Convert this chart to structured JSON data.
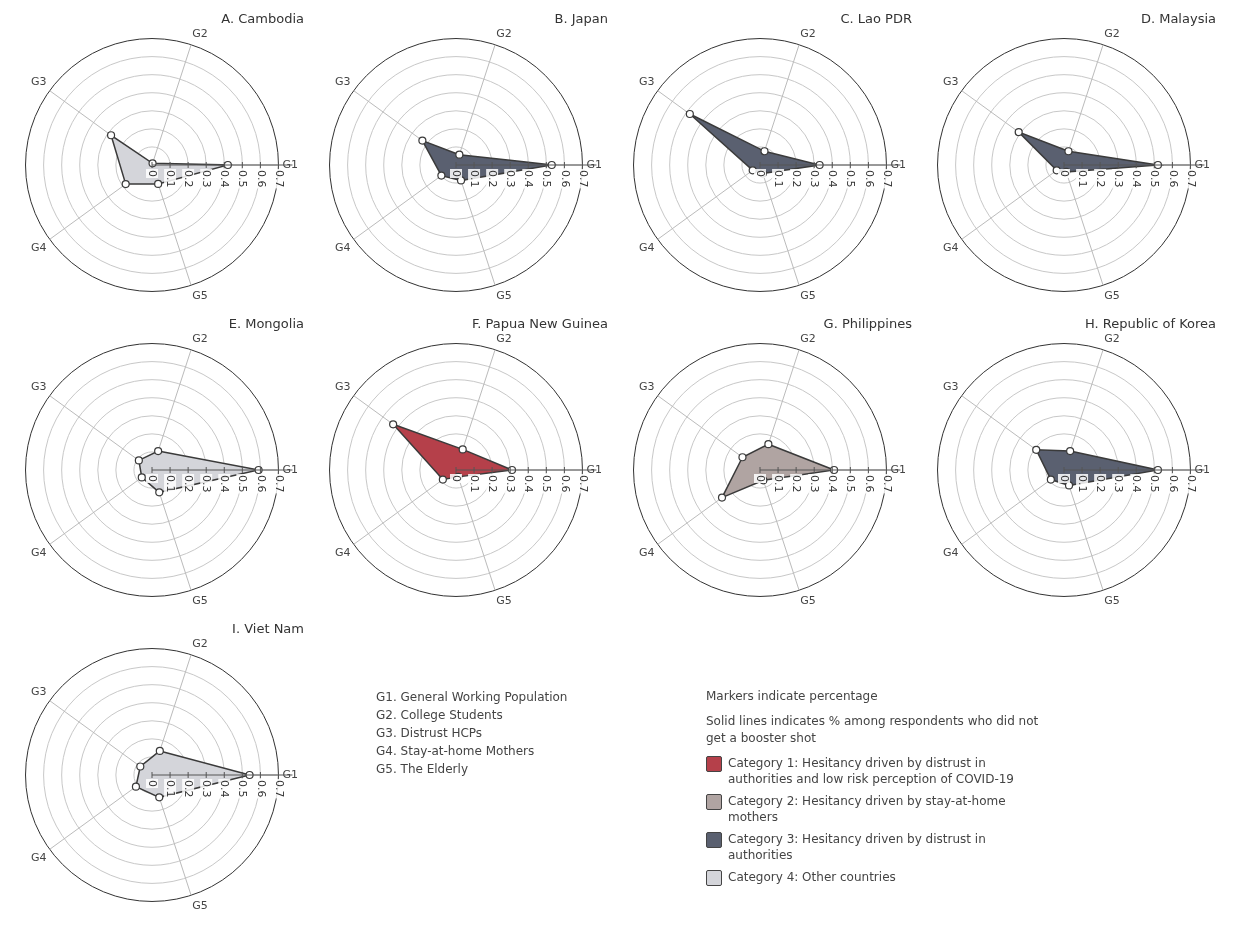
{
  "chart_data": [
    {
      "type": "radar",
      "title": "A. Cambodia",
      "categories": [
        "G2",
        "G1",
        "G5",
        "G4",
        "G3"
      ],
      "ylim": [
        0,
        0.7
      ],
      "yticks": [
        0,
        0.1,
        0.2,
        0.3,
        0.4,
        0.5,
        0.6,
        0.7
      ],
      "grid": true,
      "marker": "circle",
      "series": [
        {
          "color": "#d4d5da",
          "values": [
            0.01,
            0.42,
            0.11,
            0.18,
            0.28
          ]
        }
      ]
    },
    {
      "type": "radar",
      "title": "B. Japan",
      "categories": [
        "G2",
        "G1",
        "G5",
        "G4",
        "G3"
      ],
      "ylim": [
        0,
        0.7
      ],
      "yticks": [
        0,
        0.1,
        0.2,
        0.3,
        0.4,
        0.5,
        0.6,
        0.7
      ],
      "grid": true,
      "marker": "circle",
      "series": [
        {
          "color": "#5a6070",
          "values": [
            0.06,
            0.53,
            0.09,
            0.1,
            0.23
          ]
        }
      ]
    },
    {
      "type": "radar",
      "title": "C. Lao PDR",
      "categories": [
        "G2",
        "G1",
        "G5",
        "G4",
        "G3"
      ],
      "ylim": [
        0,
        0.7
      ],
      "yticks": [
        0,
        0.1,
        0.2,
        0.3,
        0.4,
        0.5,
        0.6,
        0.7
      ],
      "grid": true,
      "marker": "circle",
      "series": [
        {
          "color": "#5a6070",
          "values": [
            0.08,
            0.33,
            0.05,
            0.05,
            0.48
          ]
        }
      ]
    },
    {
      "type": "radar",
      "title": "D. Malaysia",
      "categories": [
        "G2",
        "G1",
        "G5",
        "G4",
        "G3"
      ],
      "ylim": [
        0,
        0.7
      ],
      "yticks": [
        0,
        0.1,
        0.2,
        0.3,
        0.4,
        0.5,
        0.6,
        0.7
      ],
      "grid": true,
      "marker": "circle",
      "series": [
        {
          "color": "#5a6070",
          "values": [
            0.08,
            0.52,
            0.04,
            0.05,
            0.31
          ]
        }
      ]
    },
    {
      "type": "radar",
      "title": "E. Mongolia",
      "categories": [
        "G2",
        "G1",
        "G5",
        "G4",
        "G3"
      ],
      "ylim": [
        0,
        0.7
      ],
      "yticks": [
        0,
        0.1,
        0.2,
        0.3,
        0.4,
        0.5,
        0.6,
        0.7
      ],
      "grid": true,
      "marker": "circle",
      "series": [
        {
          "color": "#d4d5da",
          "values": [
            0.11,
            0.59,
            0.13,
            0.07,
            0.09
          ]
        }
      ]
    },
    {
      "type": "radar",
      "title": "F. Papua New Guinea",
      "categories": [
        "G2",
        "G1",
        "G5",
        "G4",
        "G3"
      ],
      "ylim": [
        0,
        0.7
      ],
      "yticks": [
        0,
        0.1,
        0.2,
        0.3,
        0.4,
        0.5,
        0.6,
        0.7
      ],
      "grid": true,
      "marker": "circle",
      "series": [
        {
          "color": "#b5404a",
          "values": [
            0.12,
            0.31,
            0.04,
            0.09,
            0.43
          ]
        }
      ]
    },
    {
      "type": "radar",
      "title": "G. Philippines",
      "categories": [
        "G2",
        "G1",
        "G5",
        "G4",
        "G3"
      ],
      "ylim": [
        0,
        0.7
      ],
      "yticks": [
        0,
        0.1,
        0.2,
        0.3,
        0.4,
        0.5,
        0.6,
        0.7
      ],
      "grid": true,
      "marker": "circle",
      "series": [
        {
          "color": "#b0a4a2",
          "values": [
            0.15,
            0.41,
            0.06,
            0.26,
            0.12
          ]
        }
      ]
    },
    {
      "type": "radar",
      "title": "H. Republic of Korea",
      "categories": [
        "G2",
        "G1",
        "G5",
        "G4",
        "G3"
      ],
      "ylim": [
        0,
        0.7
      ],
      "yticks": [
        0,
        0.1,
        0.2,
        0.3,
        0.4,
        0.5,
        0.6,
        0.7
      ],
      "grid": true,
      "marker": "circle",
      "series": [
        {
          "color": "#5a6070",
          "values": [
            0.11,
            0.52,
            0.09,
            0.09,
            0.19
          ]
        }
      ]
    },
    {
      "type": "radar",
      "title": "I. Viet Nam",
      "categories": [
        "G2",
        "G1",
        "G5",
        "G4",
        "G3"
      ],
      "ylim": [
        0,
        0.7
      ],
      "yticks": [
        0,
        0.1,
        0.2,
        0.3,
        0.4,
        0.5,
        0.6,
        0.7
      ],
      "grid": true,
      "marker": "circle",
      "series": [
        {
          "color": "#d4d5da",
          "values": [
            0.14,
            0.54,
            0.13,
            0.11,
            0.08
          ]
        }
      ]
    },
    {
      "type": "other",
      "annotations": [
        "G1. General Working Population",
        "G2. College Students",
        "G3. Distrust HCPs",
        "G4. Stay-at-home Mothers",
        "G5. The Elderly",
        "Markers indicate percentage",
        "Solid lines indicates % among respondents who did not get a booster shot"
      ],
      "categories": [
        "Category 1: Hesitancy driven by distrust in authorities and low risk perception of COVID-19",
        "Category 2: Hesitancy driven by stay-at-home mothers",
        "Category 3: Hesitancy driven by distrust in authorities",
        "Category 4: Other countries"
      ],
      "colors": [
        "#b5404a",
        "#b0a4a2",
        "#5a6070",
        "#d4d5da"
      ]
    }
  ]
}
